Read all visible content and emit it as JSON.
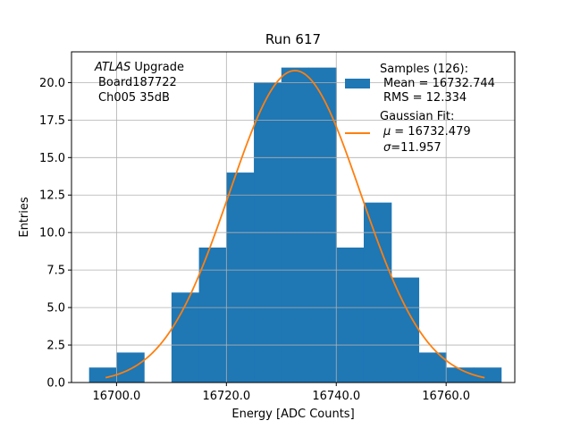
{
  "chart_data": {
    "type": "bar",
    "title": "Run 617",
    "xlabel": "Energy [ADC Counts]",
    "ylabel": "Entries",
    "xlim": [
      16691.8,
      16772.5
    ],
    "ylim": [
      0,
      22.05
    ],
    "xticks": [
      16700.0,
      16720.0,
      16740.0,
      16760.0
    ],
    "xtick_labels": [
      "16700.0",
      "16720.0",
      "16740.0",
      "16760.0"
    ],
    "yticks": [
      0,
      2.5,
      5,
      7.5,
      10,
      12.5,
      15,
      17.5,
      20
    ],
    "ytick_labels": [
      "0.0",
      "2.5",
      "5.0",
      "7.5",
      "10.0",
      "12.5",
      "15.0",
      "17.5",
      "20.0"
    ],
    "grid": true,
    "bar_color": "#1f77b4",
    "fit_color": "#ff7f0e",
    "histogram": {
      "bin_edges": [
        16695,
        16700,
        16705,
        16710,
        16715,
        16720,
        16725,
        16730,
        16735,
        16740,
        16745,
        16750,
        16755,
        16760,
        16765,
        16770
      ],
      "counts": [
        1,
        2,
        0,
        6,
        9,
        14,
        20,
        21,
        21,
        9,
        12,
        7,
        2,
        1,
        1
      ]
    },
    "fit": {
      "type": "gaussian",
      "mu": 16732.479,
      "sigma": 11.957,
      "amplitude": 20.8,
      "x_range": [
        16698,
        16767
      ]
    },
    "annotation": {
      "lines": [
        "ATLAS Upgrade",
        "Board187722",
        "Ch005 35dB"
      ],
      "italic_word": "ATLAS",
      "rest_of_first_line": " Upgrade"
    },
    "legend": {
      "placement": "top-right",
      "samples_lines": [
        "Samples (126):",
        "Mean = 16732.744",
        "RMS = 12.334"
      ],
      "fit_lines": [
        "Gaussian Fit:",
        "= 16732.479",
        "=11.957"
      ],
      "fit_symbols": [
        "μ",
        "σ"
      ]
    }
  }
}
